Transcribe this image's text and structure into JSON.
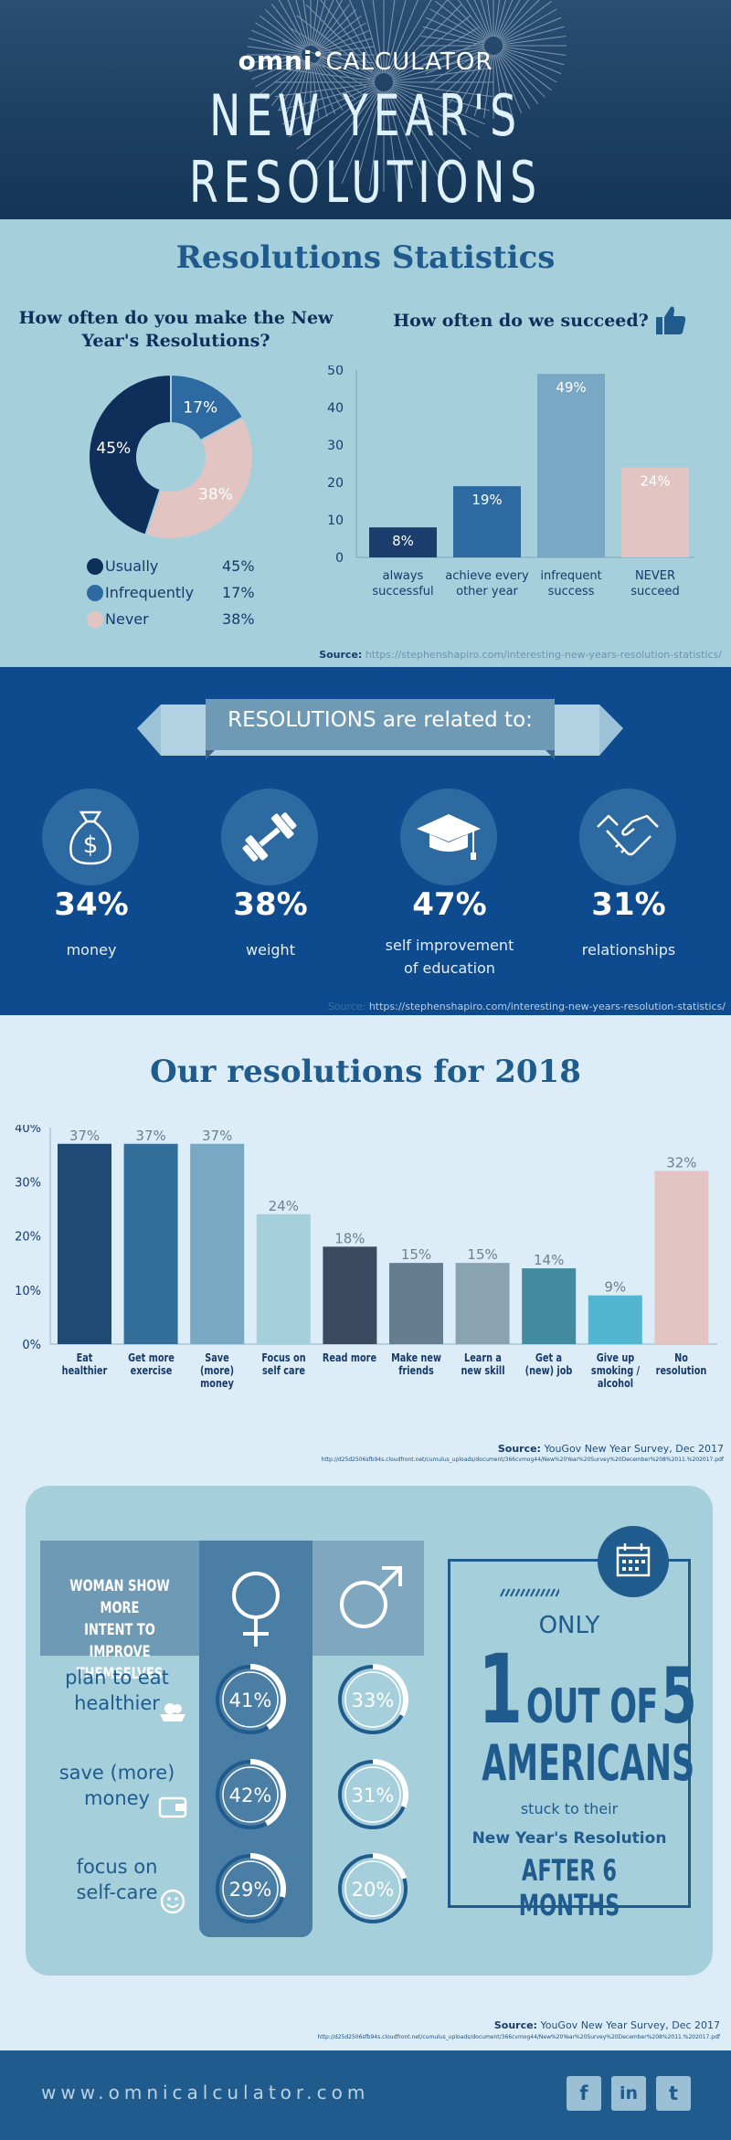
{
  "header": {
    "brand_bold": "omni",
    "brand_rest": "CALCULATOR",
    "title": "NEW YEAR'S RESOLUTIONS"
  },
  "stats": {
    "title": "Resolutions Statistics",
    "pie_title_1": "How often do you make the New",
    "pie_title_2": "Year's Resolutions?",
    "bar_title": "How often do we succeed?",
    "source_label": "Source:",
    "source_url": "https://stephenshapiro.com/interesting-new-years-resolution-statistics/"
  },
  "chart_data": [
    {
      "type": "pie",
      "title": "How often do you make the New Year's Resolutions?",
      "slices": [
        {
          "label": "Usually",
          "value": 45,
          "pct_label": "45%",
          "color": "#0f2f5a"
        },
        {
          "label": "Infrequently",
          "value": 17,
          "pct_label": "17%",
          "color": "#2e6aa2"
        },
        {
          "label": "Never",
          "value": 38,
          "pct_label": "38%",
          "color": "#e2c5c2"
        }
      ]
    },
    {
      "type": "bar",
      "title": "How often do we succeed?",
      "ylim": [
        0,
        50
      ],
      "yticks": [
        "0",
        "10",
        "20",
        "30",
        "40",
        "50"
      ],
      "categories": [
        [
          "always",
          "successful"
        ],
        [
          "achieve every",
          "other year"
        ],
        [
          "infrequent",
          "success"
        ],
        [
          "NEVER",
          "succeed"
        ]
      ],
      "values": [
        8,
        19,
        49,
        24
      ],
      "labels": [
        "8%",
        "19%",
        "49%",
        "24%"
      ],
      "colors": [
        "#1b3e6e",
        "#2e6aa2",
        "#79a8c4",
        "#e2c5c2"
      ]
    },
    {
      "type": "bar",
      "title": "Our resolutions for 2018",
      "ylim": [
        0,
        40
      ],
      "yticks": [
        "0%",
        "10%",
        "20%",
        "30%",
        "40%"
      ],
      "categories": [
        [
          "Eat",
          "healthier"
        ],
        [
          "Get more",
          "exercise"
        ],
        [
          "Save",
          "(more)",
          "money"
        ],
        [
          "Focus on",
          "self care"
        ],
        [
          "Read more"
        ],
        [
          "Make new",
          "friends"
        ],
        [
          "Learn a",
          "new skill"
        ],
        [
          "Get a",
          "(new) job"
        ],
        [
          "Give up",
          "smoking /",
          "alcohol"
        ],
        [
          "No",
          "resolution"
        ]
      ],
      "values": [
        37,
        37,
        37,
        24,
        18,
        15,
        15,
        14,
        9,
        32
      ],
      "labels": [
        "37%",
        "37%",
        "37%",
        "24%",
        "18%",
        "15%",
        "15%",
        "14%",
        "9%",
        "32%"
      ],
      "colors": [
        "#1f4a76",
        "#336d9a",
        "#79a8c2",
        "#a6cfdc",
        "#3b4b5f",
        "#647d91",
        "#8aa3b3",
        "#428aa0",
        "#53b6d0",
        "#e2c5c2"
      ]
    },
    {
      "type": "donut-rings",
      "rows": [
        {
          "label": "plan to eat healthier",
          "women": 41,
          "men": 33
        },
        {
          "label": "save (more) money",
          "women": 42,
          "men": 31
        },
        {
          "label": "focus on self-care",
          "women": 29,
          "men": 20
        }
      ]
    }
  ],
  "related": {
    "banner": "RESOLUTIONS are related to:",
    "items": [
      {
        "icon": "money-bag-icon",
        "pct": "34%",
        "label1": "money",
        "label2": ""
      },
      {
        "icon": "dumbbell-icon",
        "pct": "38%",
        "label1": "weight",
        "label2": ""
      },
      {
        "icon": "graduation-cap-icon",
        "pct": "47%",
        "label1": "self improvement",
        "label2": "of education"
      },
      {
        "icon": "handshake-icon",
        "pct": "31%",
        "label1": "relationships",
        "label2": ""
      }
    ],
    "source_label": "Source:",
    "source_url": "https://stephenshapiro.com/interesting-new-years-resolution-statistics/"
  },
  "y2018": {
    "title": "Our resolutions for 2018",
    "source_label": "Source:",
    "source_text": "YouGov New Year Survey, Dec 2017",
    "source_url": "http://d25d2506sfb94s.cloudfront.net/cumulus_uploads/document/366cvmog44/New%20Year%20Survey%20December%208%2011.%202017.pdf"
  },
  "gender": {
    "heading_1": "WOMAN SHOW MORE",
    "heading_2": "INTENT TO IMPROVE",
    "heading_3": "THEMSELVES",
    "rows": [
      {
        "l1": "plan to eat",
        "l2": "healthier",
        "icon": "food-icon",
        "w": "41%",
        "m": "33%"
      },
      {
        "l1": "save (more)",
        "l2": "money",
        "icon": "wallet-icon",
        "w": "42%",
        "m": "31%"
      },
      {
        "l1": "focus on",
        "l2": "self-care",
        "icon": "smiley-icon",
        "w": "29%",
        "m": "20%"
      }
    ],
    "only": "ONLY",
    "one": "1",
    "out_of": "OUT OF",
    "five": "5",
    "americans": "AMERICANS",
    "stuck": "stuck to their",
    "nyr": "New Year's Resolution",
    "after": "AFTER 6 MONTHS",
    "source_label": "Source:",
    "source_text": "YouGov New Year Survey, Dec 2017",
    "source_url": "http://d25d2506sfb94s.cloudfront.net/cumulus_uploads/document/366cvmog44/New%20Year%20Survey%20December%208%2011.%202017.pdf"
  },
  "footer": {
    "url": "www.omnicalculator.com",
    "social": [
      "f",
      "in",
      "t"
    ]
  }
}
